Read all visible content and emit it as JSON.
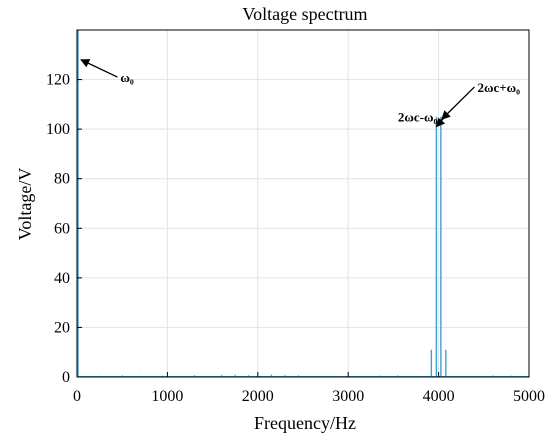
{
  "chart_data": {
    "type": "line",
    "title": "Voltage spectrum",
    "xlabel": "Frequency/Hz",
    "ylabel": "Voltage/V",
    "xlim": [
      0,
      5000
    ],
    "ylim": [
      0,
      140
    ],
    "xticks": [
      0,
      1000,
      2000,
      3000,
      4000,
      5000
    ],
    "yticks": [
      0,
      20,
      40,
      60,
      80,
      100,
      120
    ],
    "grid": true,
    "line_color": "#3fa0d2",
    "peaks": [
      {
        "x": 10,
        "y": 140
      },
      {
        "x": 3920,
        "y": 11
      },
      {
        "x": 3975,
        "y": 105
      },
      {
        "x": 4025,
        "y": 105
      },
      {
        "x": 4080,
        "y": 11
      }
    ],
    "noise": [
      {
        "x": 250,
        "y": 0.5
      },
      {
        "x": 500,
        "y": 0.7
      },
      {
        "x": 700,
        "y": 0.5
      },
      {
        "x": 950,
        "y": 0.6
      },
      {
        "x": 1300,
        "y": 0.8
      },
      {
        "x": 1600,
        "y": 0.9
      },
      {
        "x": 1750,
        "y": 1.0
      },
      {
        "x": 1900,
        "y": 0.8
      },
      {
        "x": 2150,
        "y": 1.0
      },
      {
        "x": 2300,
        "y": 0.9
      },
      {
        "x": 2450,
        "y": 0.7
      },
      {
        "x": 3350,
        "y": 0.6
      },
      {
        "x": 3550,
        "y": 0.7
      },
      {
        "x": 4600,
        "y": 0.7
      },
      {
        "x": 4800,
        "y": 0.6
      }
    ],
    "annotations": [
      {
        "text": "ω₀",
        "point": [
          10,
          128
        ],
        "text_at": [
          480,
          119
        ]
      },
      {
        "text": "2ωc-ω₀",
        "point": [
          3975,
          101
        ],
        "text_at": [
          3550,
          103
        ]
      },
      {
        "text": "2ωc+ω₀",
        "point": [
          4035,
          104
        ],
        "text_at": [
          4430,
          115
        ]
      }
    ]
  }
}
